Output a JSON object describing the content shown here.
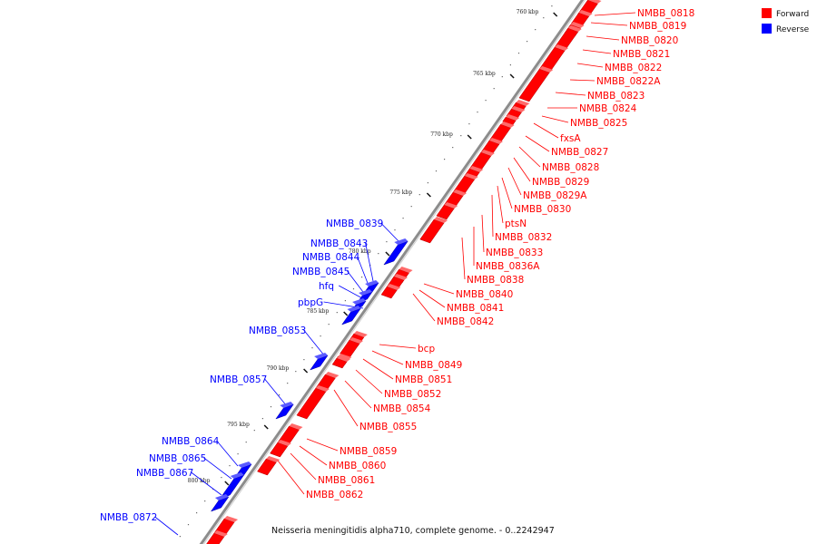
{
  "colors": {
    "forward": "#ff0000",
    "reverse": "#0000ff",
    "axis": "#8c8c8c",
    "tick": "#111111"
  },
  "legend": [
    {
      "label": "Forward",
      "color": "#ff0000"
    },
    {
      "label": "Reverse",
      "color": "#0000ff"
    }
  ],
  "caption": "Neisseria meningitidis alpha710, complete genome. - 0..2242947",
  "scale": {
    "tick_labels": [
      "760 kbp",
      "765 kbp",
      "770 kbp",
      "775 kbp",
      "780 kbp",
      "785 kbp",
      "790 kbp",
      "795 kbp",
      "800 kbp"
    ]
  },
  "forward_labels": [
    "NMBB_0818",
    "NMBB_0819",
    "NMBB_0820",
    "NMBB_0821",
    "NMBB_0822",
    "NMBB_0822A",
    "NMBB_0823",
    "NMBB_0824",
    "NMBB_0825",
    "fxsA",
    "NMBB_0827",
    "NMBB_0828",
    "NMBB_0829",
    "NMBB_0829A",
    "NMBB_0830",
    "ptsN",
    "NMBB_0832",
    "NMBB_0833",
    "NMBB_0836A",
    "NMBB_0838",
    "NMBB_0840",
    "NMBB_0841",
    "NMBB_0842",
    "bcp",
    "NMBB_0849",
    "NMBB_0851",
    "NMBB_0852",
    "NMBB_0854",
    "NMBB_0855",
    "NMBB_0859",
    "NMBB_0860",
    "NMBB_0861",
    "NMBB_0862"
  ],
  "reverse_labels": [
    "NMBB_0839",
    "NMBB_0843",
    "NMBB_0844",
    "NMBB_0845",
    "hfq",
    "pbpG",
    "NMBB_0853",
    "NMBB_0857",
    "NMBB_0864",
    "NMBB_0865",
    "NMBB_0867",
    "NMBB_0872"
  ]
}
